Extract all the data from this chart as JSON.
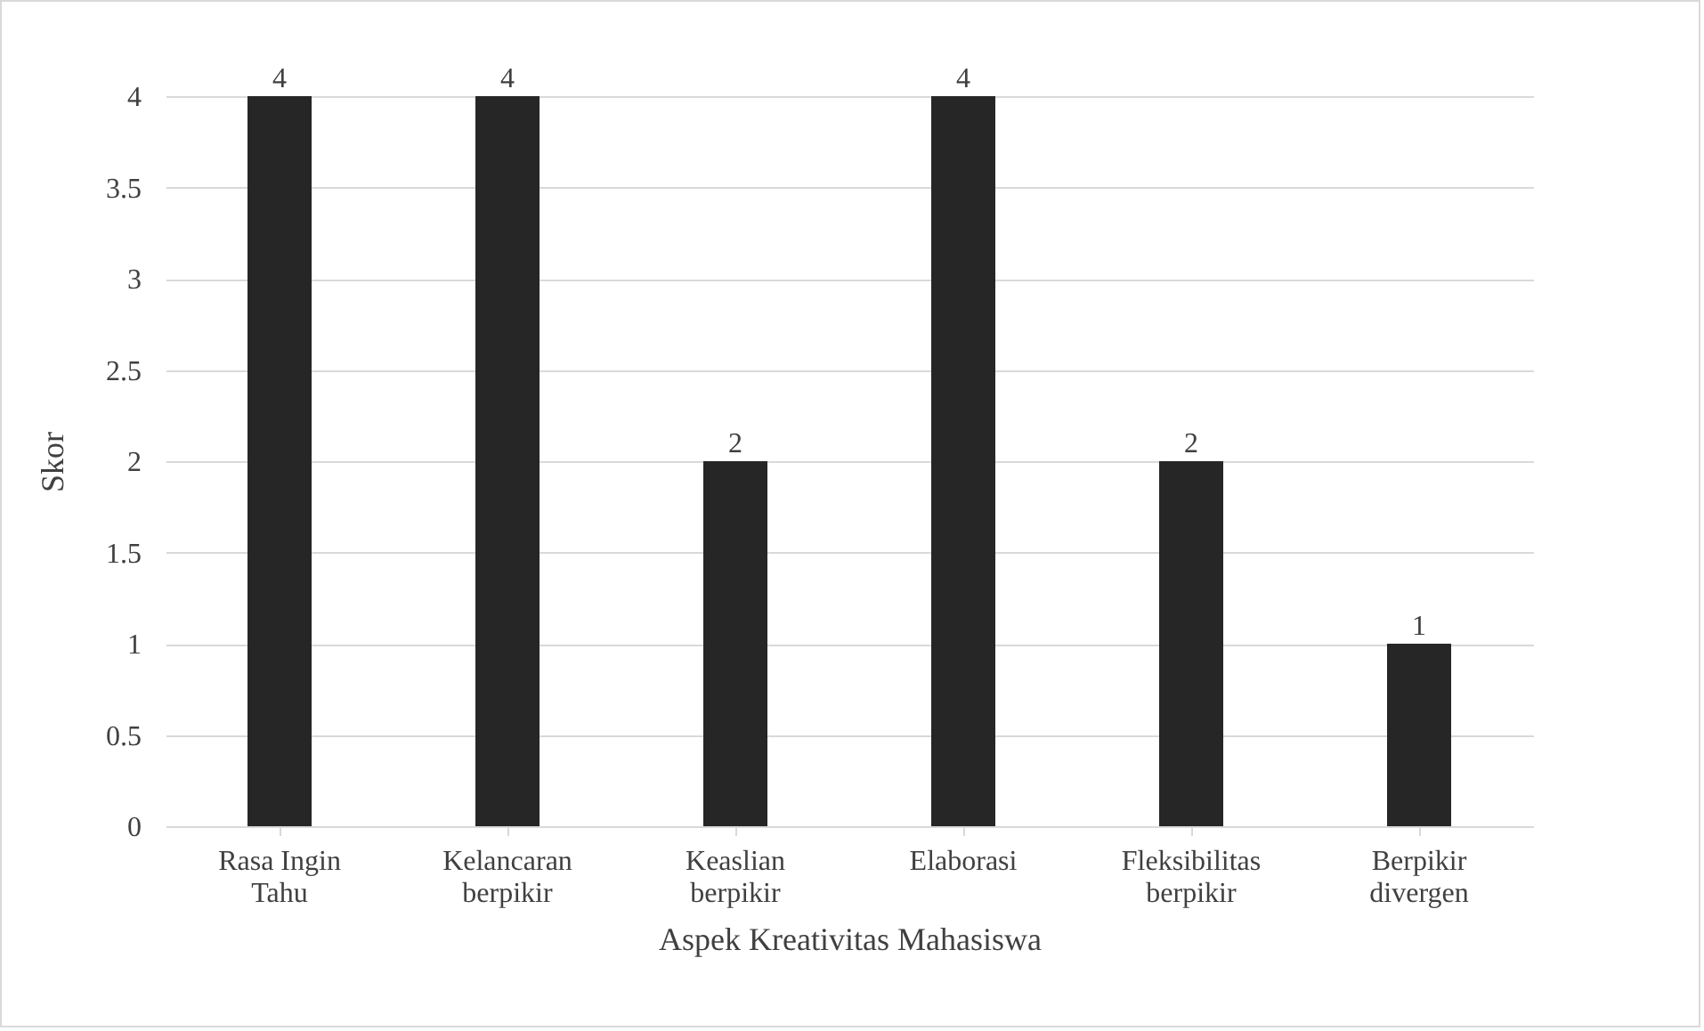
{
  "chart_data": {
    "type": "bar",
    "xlabel": "Aspek Kreativitas Mahasiswa",
    "ylabel": "Skor",
    "categories": [
      "Rasa Ingin Tahu",
      "Kelancaran berpikir",
      "Keaslian berpikir",
      "Elaborasi",
      "Fleksibilitas berpikir",
      "Berpikir divergen"
    ],
    "values": [
      4,
      4,
      2,
      4,
      2,
      1
    ],
    "color": "#262626",
    "ylim": [
      0,
      4
    ],
    "yticks": [
      0,
      0.5,
      1,
      1.5,
      2,
      2.5,
      3,
      3.5,
      4
    ],
    "grid": "y",
    "data_labels": true
  }
}
